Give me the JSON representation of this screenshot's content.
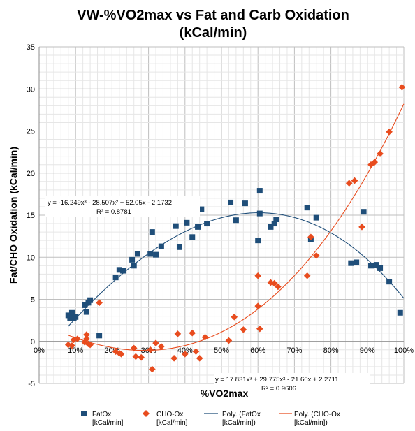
{
  "chart_data": {
    "type": "scatter",
    "title_line1": "VW-%VO2max  vs Fat and Carb Oxidation",
    "title_line2": "(kCal/min)",
    "xlabel": "%VO2max",
    "ylabel": "Fat/CHO Oxidation (kCal/min)",
    "xlim": [
      0,
      1
    ],
    "ylim": [
      -5,
      35
    ],
    "x_ticks": [
      0,
      0.1,
      0.2,
      0.3,
      0.4,
      0.5,
      0.6,
      0.7,
      0.8,
      0.9,
      1.0
    ],
    "x_tick_labels": [
      "0%",
      "10%",
      "20%",
      "30%",
      "40%",
      "50%",
      "60%",
      "70%",
      "80%",
      "90%",
      "100%"
    ],
    "y_ticks": [
      -5,
      0,
      5,
      10,
      15,
      20,
      25,
      30,
      35
    ],
    "y_tick_labels": [
      "-5",
      "0",
      "5",
      "10",
      "15",
      "20",
      "25",
      "30",
      "35"
    ],
    "grid": true,
    "legend_position": "bottom",
    "series": [
      {
        "name_line1": "FatOx",
        "name_line2": "[kCal/min]",
        "marker": "square",
        "color": "#1f4e79",
        "points": [
          [
            0.08,
            3.1
          ],
          [
            0.085,
            2.8
          ],
          [
            0.09,
            3.4
          ],
          [
            0.095,
            2.8
          ],
          [
            0.1,
            2.9
          ],
          [
            0.125,
            4.3
          ],
          [
            0.13,
            3.5
          ],
          [
            0.135,
            4.6
          ],
          [
            0.14,
            4.9
          ],
          [
            0.165,
            0.7
          ],
          [
            0.21,
            7.6
          ],
          [
            0.22,
            8.5
          ],
          [
            0.23,
            8.4
          ],
          [
            0.255,
            9.7
          ],
          [
            0.26,
            9.0
          ],
          [
            0.27,
            10.4
          ],
          [
            0.305,
            10.4
          ],
          [
            0.31,
            13.0
          ],
          [
            0.32,
            10.3
          ],
          [
            0.335,
            11.3
          ],
          [
            0.375,
            13.7
          ],
          [
            0.385,
            11.2
          ],
          [
            0.405,
            14.1
          ],
          [
            0.42,
            12.4
          ],
          [
            0.435,
            13.6
          ],
          [
            0.445,
            15.7
          ],
          [
            0.46,
            14.0
          ],
          [
            0.525,
            16.5
          ],
          [
            0.54,
            14.4
          ],
          [
            0.565,
            16.4
          ],
          [
            0.6,
            12.0
          ],
          [
            0.605,
            17.9
          ],
          [
            0.605,
            15.2
          ],
          [
            0.635,
            13.6
          ],
          [
            0.645,
            14.0
          ],
          [
            0.65,
            14.5
          ],
          [
            0.735,
            15.9
          ],
          [
            0.745,
            12.1
          ],
          [
            0.76,
            14.7
          ],
          [
            0.855,
            9.3
          ],
          [
            0.87,
            9.4
          ],
          [
            0.89,
            15.4
          ],
          [
            0.91,
            9.0
          ],
          [
            0.925,
            9.1
          ],
          [
            0.935,
            8.7
          ],
          [
            0.96,
            7.1
          ],
          [
            0.99,
            3.4
          ]
        ]
      },
      {
        "name_line1": "CHO-Ox",
        "name_line2": "[kCal/min]",
        "marker": "diamond",
        "color": "#e84c1e",
        "points": [
          [
            0.08,
            -0.4
          ],
          [
            0.09,
            -0.5
          ],
          [
            0.095,
            0.2
          ],
          [
            0.105,
            0.3
          ],
          [
            0.125,
            -0.1
          ],
          [
            0.13,
            0.3
          ],
          [
            0.13,
            0.8
          ],
          [
            0.135,
            -0.3
          ],
          [
            0.14,
            -0.4
          ],
          [
            0.165,
            4.6
          ],
          [
            0.21,
            -1.2
          ],
          [
            0.22,
            -1.4
          ],
          [
            0.225,
            -1.5
          ],
          [
            0.26,
            -0.8
          ],
          [
            0.265,
            -1.8
          ],
          [
            0.28,
            -1.9
          ],
          [
            0.305,
            -1.0
          ],
          [
            0.31,
            -3.3
          ],
          [
            0.32,
            -0.2
          ],
          [
            0.335,
            -0.6
          ],
          [
            0.37,
            -2.0
          ],
          [
            0.38,
            0.9
          ],
          [
            0.4,
            -1.5
          ],
          [
            0.42,
            1.0
          ],
          [
            0.43,
            -1.2
          ],
          [
            0.44,
            -2.0
          ],
          [
            0.455,
            0.5
          ],
          [
            0.52,
            0.1
          ],
          [
            0.535,
            2.9
          ],
          [
            0.56,
            1.4
          ],
          [
            0.6,
            7.8
          ],
          [
            0.6,
            4.2
          ],
          [
            0.605,
            1.5
          ],
          [
            0.635,
            7.0
          ],
          [
            0.645,
            6.9
          ],
          [
            0.655,
            6.5
          ],
          [
            0.735,
            7.8
          ],
          [
            0.745,
            12.4
          ],
          [
            0.76,
            10.2
          ],
          [
            0.85,
            18.8
          ],
          [
            0.865,
            19.1
          ],
          [
            0.885,
            13.6
          ],
          [
            0.91,
            21.0
          ],
          [
            0.92,
            21.3
          ],
          [
            0.935,
            22.3
          ],
          [
            0.96,
            24.9
          ],
          [
            0.995,
            30.2
          ]
        ]
      },
      {
        "name_line1": "Poly.  (FatOx",
        "name_line2": "[kCal/min])",
        "type": "trendline",
        "color": "#1f4e79",
        "coefficients": [
          -16.249,
          -28.507,
          52.05,
          -2.1732
        ],
        "x_range": [
          0.08,
          1.0
        ],
        "equation": "y = -16.249x³ - 28.507x² + 52.05x - 2.1732",
        "r2": "R² = 0.8781"
      },
      {
        "name_line1": "Poly.  (CHO-Ox",
        "name_line2": "[kCal/min])",
        "type": "trendline",
        "color": "#e84c1e",
        "coefficients": [
          17.831,
          29.775,
          -21.66,
          2.2711
        ],
        "x_range": [
          0.08,
          1.0
        ],
        "equation": "y = 17.831x³ + 29.775x² - 21.66x + 2.2711",
        "r2": "R² = 0.9606"
      }
    ]
  }
}
